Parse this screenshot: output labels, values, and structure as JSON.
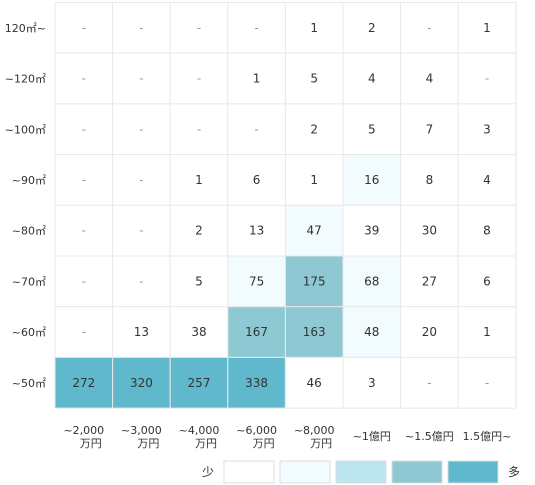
{
  "chart_data": {
    "type": "heatmap",
    "rows": [
      "120㎡~",
      "~120㎡",
      "~100㎡",
      "~90㎡",
      "~80㎡",
      "~70㎡",
      "~60㎡",
      "~50㎡"
    ],
    "columns": [
      [
        "~2,000",
        "万円"
      ],
      [
        "~3,000",
        "万円"
      ],
      [
        "~4,000",
        "万円"
      ],
      [
        "~6,000",
        "万円"
      ],
      [
        "~8,000",
        "万円"
      ],
      [
        "~1億円"
      ],
      [
        "~1.5億円"
      ],
      [
        "1.5億円~"
      ]
    ],
    "values": [
      [
        "-",
        "-",
        "-",
        "-",
        "1",
        "2",
        "-",
        "1"
      ],
      [
        "-",
        "-",
        "-",
        "1",
        "5",
        "4",
        "4",
        "-"
      ],
      [
        "-",
        "-",
        "-",
        "-",
        "2",
        "5",
        "7",
        "3"
      ],
      [
        "-",
        "-",
        "1",
        "6",
        "1",
        "16",
        "8",
        "4"
      ],
      [
        "-",
        "-",
        "2",
        "13",
        "47",
        "39",
        "30",
        "8"
      ],
      [
        "-",
        "-",
        "5",
        "75",
        "175",
        "68",
        "27",
        "6"
      ],
      [
        "-",
        "13",
        "38",
        "167",
        "163",
        "48",
        "20",
        "1"
      ],
      [
        "272",
        "320",
        "257",
        "338",
        "46",
        "3",
        "-",
        "-"
      ]
    ],
    "color_levels": [
      [
        0,
        0,
        0,
        0,
        0,
        0,
        0,
        0
      ],
      [
        0,
        0,
        0,
        0,
        0,
        0,
        0,
        0
      ],
      [
        0,
        0,
        0,
        0,
        0,
        0,
        0,
        0
      ],
      [
        0,
        0,
        0,
        0,
        0,
        1,
        0,
        0
      ],
      [
        0,
        0,
        0,
        0,
        1,
        0,
        0,
        0
      ],
      [
        0,
        0,
        0,
        1,
        3,
        1,
        0,
        0
      ],
      [
        0,
        0,
        0,
        3,
        3,
        1,
        0,
        0
      ],
      [
        4,
        4,
        4,
        4,
        0,
        0,
        0,
        0
      ]
    ],
    "legend": {
      "low_label": "少",
      "high_label": "多",
      "swatches": [
        "#ffffff",
        "#f2fbfd",
        "#bce6ef",
        "#8ec8d3",
        "#5fb8cc"
      ]
    }
  }
}
